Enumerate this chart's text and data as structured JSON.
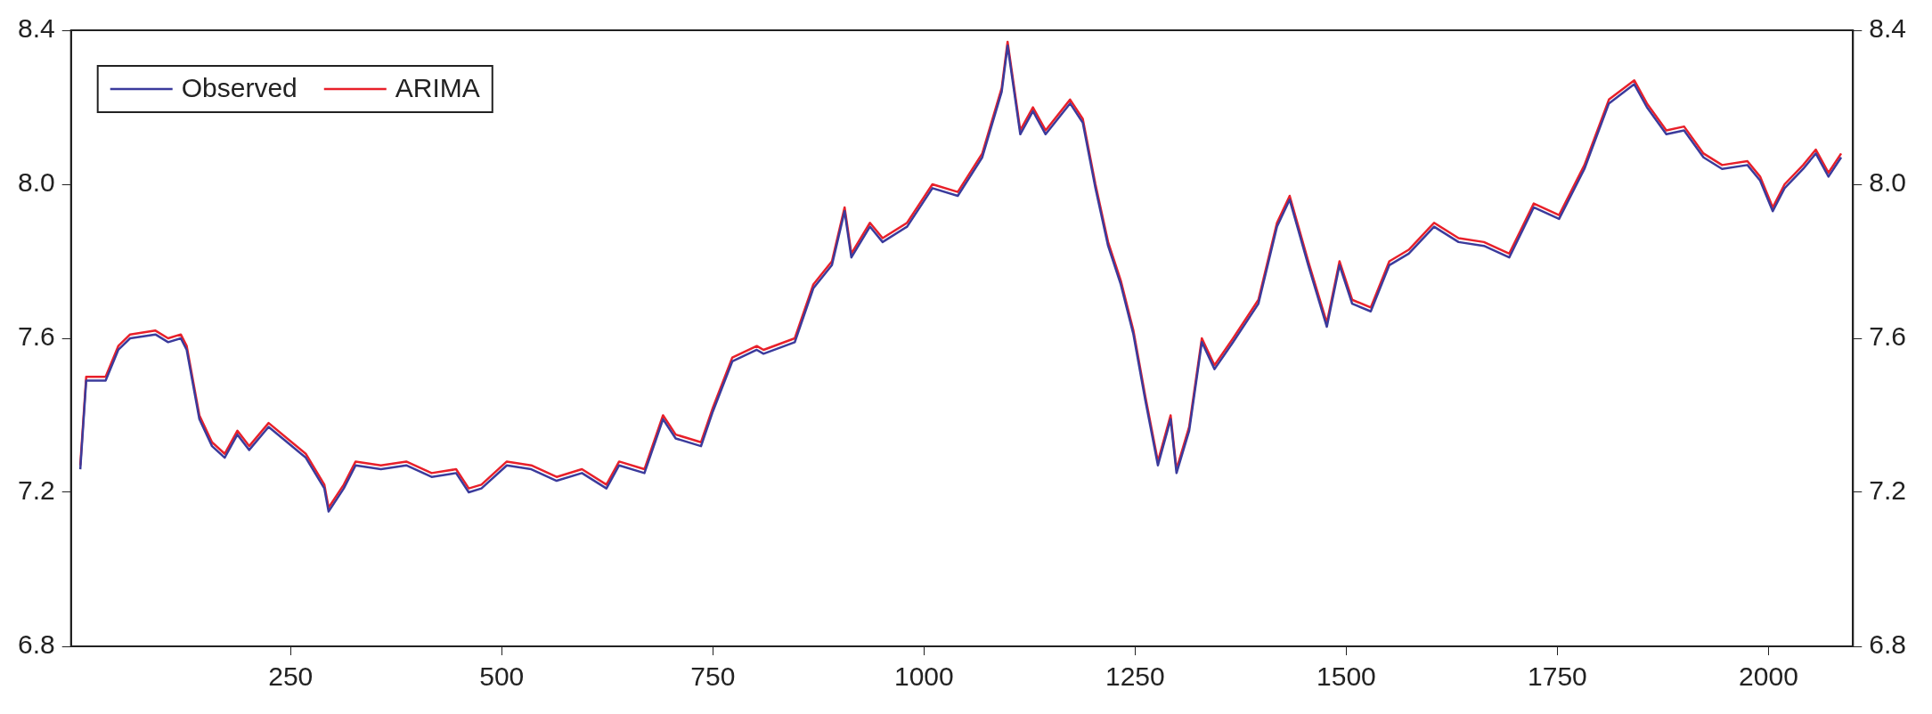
{
  "chart_data": {
    "type": "line",
    "x": [
      1,
      8,
      31,
      46,
      60,
      90,
      105,
      120,
      127,
      142,
      157,
      172,
      187,
      201,
      224,
      246,
      268,
      290,
      295,
      313,
      327,
      357,
      387,
      417,
      446,
      461,
      476,
      506,
      535,
      565,
      595,
      624,
      639,
      669,
      691,
      706,
      736,
      750,
      773,
      802,
      810,
      847,
      869,
      891,
      906,
      914,
      936,
      951,
      980,
      1010,
      1040,
      1069,
      1092,
      1099,
      1114,
      1129,
      1144,
      1173,
      1188,
      1203,
      1218,
      1233,
      1248,
      1262,
      1277,
      1292,
      1299,
      1314,
      1329,
      1344,
      1366,
      1396,
      1418,
      1433,
      1455,
      1477,
      1492,
      1507,
      1529,
      1551,
      1574,
      1604,
      1633,
      1663,
      1693,
      1722,
      1752,
      1782,
      1811,
      1841,
      1856,
      1879,
      1900,
      1923,
      1945,
      1975,
      1990,
      2005,
      2019,
      2041,
      2056,
      2071,
      2086
    ],
    "series": [
      {
        "name": "Observed",
        "color": "#3b3b9c",
        "values": [
          7.26,
          7.49,
          7.49,
          7.57,
          7.6,
          7.61,
          7.59,
          7.6,
          7.57,
          7.39,
          7.32,
          7.29,
          7.35,
          7.31,
          7.37,
          7.33,
          7.29,
          7.21,
          7.15,
          7.21,
          7.27,
          7.26,
          7.27,
          7.24,
          7.25,
          7.2,
          7.21,
          7.27,
          7.26,
          7.23,
          7.25,
          7.21,
          7.27,
          7.25,
          7.39,
          7.34,
          7.32,
          7.41,
          7.54,
          7.57,
          7.56,
          7.59,
          7.73,
          7.79,
          7.93,
          7.81,
          7.89,
          7.85,
          7.89,
          7.99,
          7.97,
          8.07,
          8.24,
          8.36,
          8.13,
          8.19,
          8.13,
          8.21,
          8.16,
          7.99,
          7.84,
          7.74,
          7.61,
          7.44,
          7.27,
          7.39,
          7.25,
          7.36,
          7.59,
          7.52,
          7.59,
          7.69,
          7.89,
          7.96,
          7.79,
          7.63,
          7.79,
          7.69,
          7.67,
          7.79,
          7.82,
          7.89,
          7.85,
          7.84,
          7.81,
          7.94,
          7.91,
          8.04,
          8.21,
          8.26,
          8.2,
          8.13,
          8.14,
          8.07,
          8.04,
          8.05,
          8.01,
          7.93,
          7.99,
          8.04,
          8.08,
          8.02,
          8.07
        ]
      },
      {
        "name": "ARIMA",
        "color": "#e8202a",
        "values": [
          7.27,
          7.5,
          7.5,
          7.58,
          7.61,
          7.62,
          7.6,
          7.61,
          7.58,
          7.4,
          7.33,
          7.3,
          7.36,
          7.32,
          7.38,
          7.34,
          7.3,
          7.22,
          7.16,
          7.22,
          7.28,
          7.27,
          7.28,
          7.25,
          7.26,
          7.21,
          7.22,
          7.28,
          7.27,
          7.24,
          7.26,
          7.22,
          7.28,
          7.26,
          7.4,
          7.35,
          7.33,
          7.42,
          7.55,
          7.58,
          7.57,
          7.6,
          7.74,
          7.8,
          7.94,
          7.82,
          7.9,
          7.86,
          7.9,
          8.0,
          7.98,
          8.08,
          8.25,
          8.37,
          8.14,
          8.2,
          8.14,
          8.22,
          8.17,
          8.0,
          7.85,
          7.75,
          7.62,
          7.45,
          7.28,
          7.4,
          7.26,
          7.37,
          7.6,
          7.53,
          7.6,
          7.7,
          7.9,
          7.97,
          7.8,
          7.64,
          7.8,
          7.7,
          7.68,
          7.8,
          7.83,
          7.9,
          7.86,
          7.85,
          7.82,
          7.95,
          7.92,
          8.05,
          8.22,
          8.27,
          8.21,
          8.14,
          8.15,
          8.08,
          8.05,
          8.06,
          8.02,
          7.94,
          8.0,
          8.05,
          8.09,
          8.03,
          8.08
        ]
      }
    ],
    "xlim": [
      -10,
      2100
    ],
    "xticks": [
      250,
      500,
      750,
      1000,
      1250,
      1500,
      1750,
      2000
    ],
    "ylim": [
      6.8,
      8.4
    ],
    "yticks": [
      {
        "value": 6.8,
        "label": "6.8"
      },
      {
        "value": 7.2,
        "label": "7.2"
      },
      {
        "value": 7.6,
        "label": "7.6"
      },
      {
        "value": 8.0,
        "label": "8.0"
      },
      {
        "value": 8.4,
        "label": "8.4"
      }
    ],
    "y2lim": [
      6.8,
      8.4
    ],
    "y2ticks": [
      {
        "value": 6.8,
        "label": "6.8"
      },
      {
        "value": 7.2,
        "label": "7.2"
      },
      {
        "value": 7.6,
        "label": "7.6"
      },
      {
        "value": 8.0,
        "label": "8.0"
      },
      {
        "value": 8.4,
        "label": "8.4"
      }
    ],
    "grid": false,
    "legend": "top left",
    "marker": "none",
    "line_style": "solid"
  }
}
